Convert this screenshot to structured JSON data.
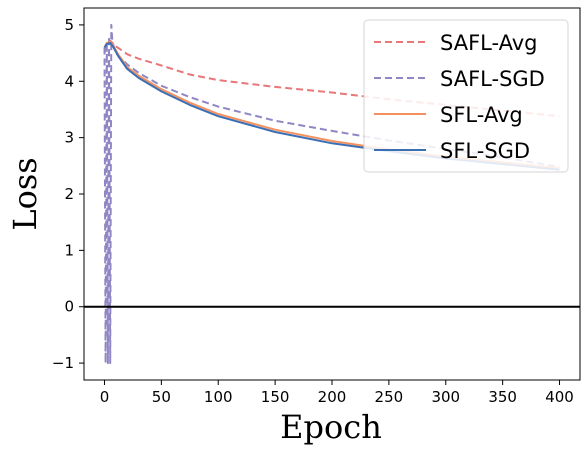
{
  "chart_data": {
    "type": "line",
    "xlabel": "Epoch",
    "ylabel": "Loss",
    "xlim": [
      -18,
      418
    ],
    "ylim": [
      -1.3,
      5.3
    ],
    "xticks": [
      0,
      50,
      100,
      150,
      200,
      250,
      300,
      350,
      400
    ],
    "yticks": [
      -1,
      0,
      1,
      2,
      3,
      4,
      5
    ],
    "reference_line_y": 0,
    "legend_position": "top-right",
    "series": [
      {
        "name": "SAFL-Avg",
        "color": "#e8777a",
        "dash": "dashed",
        "x": [
          0,
          2,
          5,
          10,
          20,
          30,
          50,
          75,
          100,
          150,
          200,
          250,
          300,
          350,
          400
        ],
        "y": [
          4.5,
          4.65,
          4.72,
          4.62,
          4.48,
          4.4,
          4.28,
          4.12,
          4.02,
          3.9,
          3.8,
          3.68,
          3.58,
          3.48,
          3.38
        ]
      },
      {
        "name": "SAFL-SGD",
        "color": "#8f87c4",
        "dash": "dashed",
        "x": [
          0,
          1,
          2,
          3,
          4,
          5,
          6,
          7,
          10,
          20,
          30,
          50,
          75,
          100,
          150,
          200,
          250,
          300,
          350,
          400
        ],
        "y": [
          4.6,
          -1.0,
          4.7,
          -1.0,
          4.8,
          -1.0,
          5.0,
          4.7,
          4.5,
          4.3,
          4.15,
          3.92,
          3.72,
          3.55,
          3.3,
          3.12,
          2.95,
          2.8,
          2.65,
          2.48
        ]
      },
      {
        "name": "SFL-Avg",
        "color": "#f4915f",
        "dash": "solid",
        "x": [
          0,
          2,
          5,
          8,
          12,
          20,
          30,
          50,
          75,
          100,
          150,
          200,
          250,
          300,
          350,
          400
        ],
        "y": [
          4.6,
          4.68,
          4.7,
          4.62,
          4.48,
          4.25,
          4.1,
          3.86,
          3.62,
          3.42,
          3.14,
          2.94,
          2.79,
          2.66,
          2.56,
          2.46
        ]
      },
      {
        "name": "SFL-SGD",
        "color": "#3a6eb5",
        "dash": "solid",
        "x": [
          0,
          2,
          5,
          8,
          12,
          20,
          30,
          50,
          75,
          100,
          150,
          200,
          250,
          300,
          350,
          400
        ],
        "y": [
          4.6,
          4.66,
          4.68,
          4.6,
          4.45,
          4.22,
          4.06,
          3.82,
          3.58,
          3.38,
          3.1,
          2.9,
          2.76,
          2.63,
          2.53,
          2.43
        ]
      }
    ]
  }
}
